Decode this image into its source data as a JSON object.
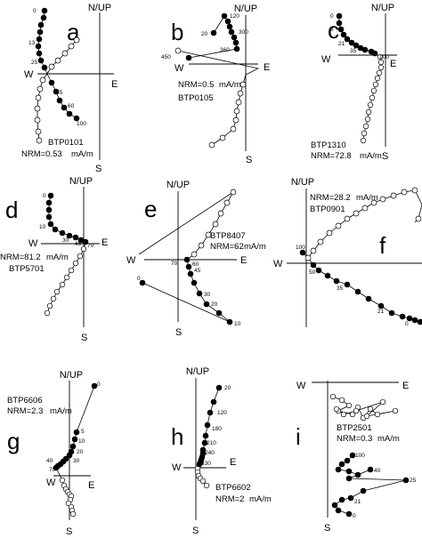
{
  "axis_labels": {
    "up": "N/UP",
    "east": "E",
    "west": "W",
    "south": "S"
  },
  "panels": [
    {
      "letter": "a",
      "site": "BTP0101",
      "nrm_value": "NRM=0.53",
      "unit": "mA/m",
      "step_labels": [
        "0",
        "13",
        "25",
        "45",
        "60",
        "100"
      ]
    },
    {
      "letter": "b",
      "site": "BTP0105",
      "nrm_value": "NRM=0.5",
      "unit": "mA/m",
      "step_labels": [
        "120",
        "20",
        "300",
        "360",
        "450"
      ]
    },
    {
      "letter": "c",
      "site": "BTP1310",
      "nrm_value": "NRM=72.8",
      "unit": "mA/m",
      "step_labels": [
        "0",
        "8",
        "21",
        "35",
        "100"
      ]
    },
    {
      "letter": "d",
      "site": "BTP5701",
      "nrm_value": "NRM=81.2",
      "unit": "mA/m",
      "step_labels": [
        "0",
        "10",
        "30",
        "45",
        "70"
      ]
    },
    {
      "letter": "e",
      "site": "BTP8407",
      "nrm_value": "NRM=62",
      "unit": "mA/m",
      "step_labels": [
        "70",
        "60",
        "45",
        "30",
        "20",
        "10",
        "0"
      ]
    },
    {
      "letter": "f",
      "site": "BTP0901",
      "nrm_value": "NRM=28.2",
      "unit": "mA/m",
      "step_labels": [
        "100",
        "50",
        "35",
        "21",
        "0"
      ]
    },
    {
      "letter": "g",
      "site": "BTP6606",
      "nrm_value": "NRM=2.3",
      "unit": "mA/m",
      "step_labels": [
        "0",
        "5",
        "10",
        "20",
        "30",
        "40",
        "70"
      ]
    },
    {
      "letter": "h",
      "site": "BTP6602",
      "nrm_value": "NRM=2",
      "unit": "mA/m",
      "step_labels": [
        "20",
        "120",
        "180",
        "210",
        "240",
        "330"
      ]
    },
    {
      "letter": "i",
      "site": "BTP2501",
      "nrm_value": "NRM=0.3",
      "unit": "mA/m",
      "step_labels": [
        "100",
        "40",
        "25",
        "21",
        "0"
      ]
    }
  ]
}
